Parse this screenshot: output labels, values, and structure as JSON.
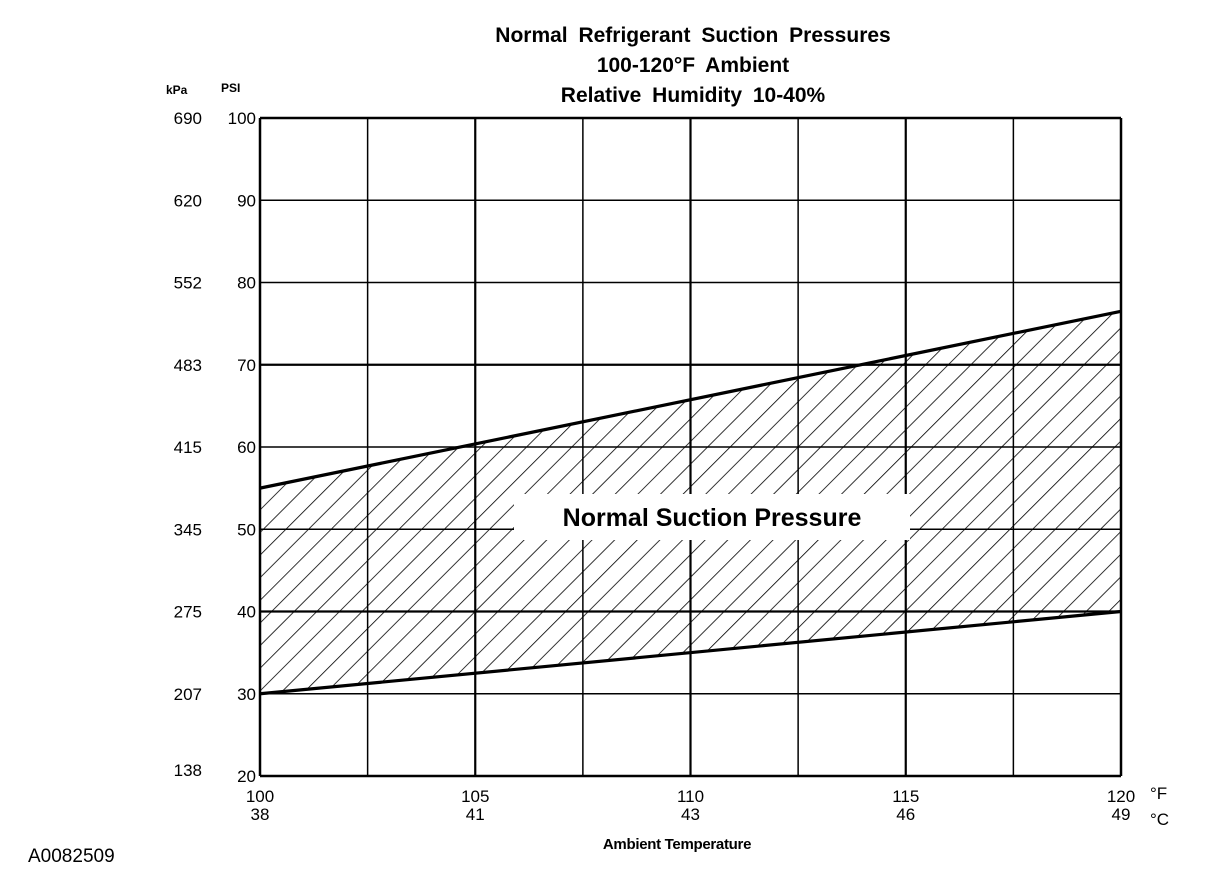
{
  "chart_data": {
    "type": "area",
    "title": "Normal Refrigerant Suction Pressures",
    "subtitle_lines": [
      "100-120°F Ambient",
      "Relative Humidity 10-40%"
    ],
    "xlabel": "Ambient Temperature",
    "x_unit_primary": "°F",
    "x_unit_secondary": "°C",
    "y_unit_primary": "PSI",
    "y_unit_secondary": "kPa",
    "xlim": [
      100,
      120
    ],
    "ylim": [
      20,
      100
    ],
    "x_ticks": [
      {
        "value": 100,
        "label": "100",
        "label_secondary": "38"
      },
      {
        "value": 105,
        "label": "105",
        "label_secondary": "41"
      },
      {
        "value": 110,
        "label": "110",
        "label_secondary": "43"
      },
      {
        "value": 115,
        "label": "115",
        "label_secondary": "46"
      },
      {
        "value": 120,
        "label": "120",
        "label_secondary": "49"
      }
    ],
    "x_gridlines": [
      100,
      102.5,
      105,
      107.5,
      110,
      112.5,
      115,
      117.5,
      120
    ],
    "y_ticks": [
      {
        "value": 20,
        "label": "20",
        "label_secondary": "138"
      },
      {
        "value": 30,
        "label": "30",
        "label_secondary": "207"
      },
      {
        "value": 40,
        "label": "40",
        "label_secondary": "275"
      },
      {
        "value": 50,
        "label": "50",
        "label_secondary": "345"
      },
      {
        "value": 60,
        "label": "60",
        "label_secondary": "415"
      },
      {
        "value": 70,
        "label": "70",
        "label_secondary": "483"
      },
      {
        "value": 80,
        "label": "80",
        "label_secondary": "552"
      },
      {
        "value": 90,
        "label": "90",
        "label_secondary": "620"
      },
      {
        "value": 100,
        "label": "100",
        "label_secondary": "690"
      }
    ],
    "grid": true,
    "band": {
      "label": "Normal Suction Pressure",
      "fill": "diagonal-hatch",
      "upper": {
        "x": [
          100,
          120
        ],
        "y": [
          55,
          76.5
        ]
      },
      "lower": {
        "x": [
          100,
          120
        ],
        "y": [
          30,
          40
        ]
      }
    }
  },
  "figure_id": "A0082509"
}
